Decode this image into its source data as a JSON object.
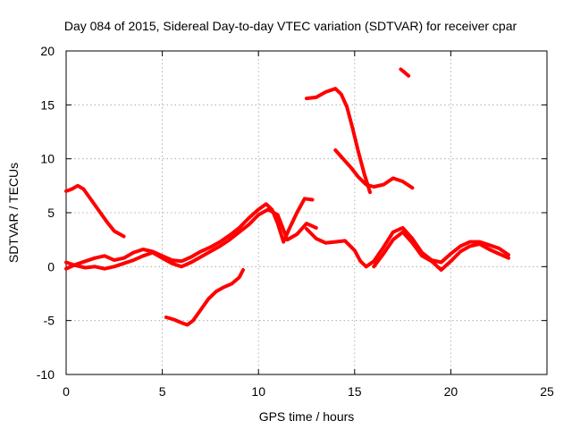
{
  "chart_data": {
    "type": "line",
    "title": "Day 084 of 2015, Sidereal Day-to-day VTEC variation (SDTVAR) for receiver cpar",
    "xlabel": "GPS time / hours",
    "ylabel": "SDTVAR / TECUs",
    "xlim": [
      0,
      25
    ],
    "ylim": [
      -10,
      20
    ],
    "x_ticks": [
      0,
      5,
      10,
      15,
      20,
      25
    ],
    "x_tick_labels": [
      "0",
      "5",
      "10",
      "15",
      "20",
      "25"
    ],
    "y_ticks": [
      -10,
      -5,
      0,
      5,
      10,
      15,
      20
    ],
    "y_tick_labels": [
      "-10",
      "-5",
      "0",
      "5",
      "10",
      "15",
      "20"
    ],
    "grid": true,
    "color": "#ff0000",
    "series": [
      {
        "name": "trace-1",
        "x": [
          0.0,
          0.3,
          0.6,
          0.9,
          1.3,
          1.7,
          2.1,
          2.5,
          3.0
        ],
        "y": [
          7.0,
          7.2,
          7.5,
          7.2,
          6.2,
          5.2,
          4.2,
          3.3,
          2.8
        ]
      },
      {
        "name": "trace-2",
        "x": [
          0.0,
          0.5,
          1.0,
          1.5,
          2.0,
          2.5,
          3.0,
          3.5,
          4.0,
          4.5,
          5.0,
          5.5,
          6.0,
          6.5,
          7.0,
          7.5,
          8.0,
          8.5,
          9.0,
          9.5,
          10.0,
          10.4,
          10.7,
          11.0,
          11.3,
          11.6,
          12.0,
          12.4,
          12.8
        ],
        "y": [
          -0.2,
          0.2,
          0.5,
          0.8,
          1.0,
          0.6,
          0.8,
          1.3,
          1.6,
          1.4,
          1.0,
          0.6,
          0.5,
          0.9,
          1.4,
          1.8,
          2.3,
          2.9,
          3.6,
          4.5,
          5.3,
          5.8,
          5.3,
          4.0,
          2.3,
          3.5,
          5.0,
          6.3,
          6.2
        ]
      },
      {
        "name": "trace-3",
        "x": [
          0.0,
          0.5,
          1.0,
          1.5,
          2.0,
          2.5,
          3.0,
          3.5,
          4.0,
          4.5,
          5.0,
          5.5,
          6.0,
          6.5,
          7.0,
          7.5,
          8.0,
          8.5,
          9.0,
          9.5,
          10.0,
          10.5,
          11.0,
          11.5,
          12.0,
          12.5,
          13.0
        ],
        "y": [
          0.4,
          0.1,
          -0.1,
          0.0,
          -0.2,
          0.0,
          0.3,
          0.6,
          1.0,
          1.3,
          0.8,
          0.3,
          0.0,
          0.4,
          0.9,
          1.4,
          1.9,
          2.5,
          3.2,
          3.9,
          4.8,
          5.3,
          4.8,
          2.5,
          3.0,
          4.0,
          3.6
        ]
      },
      {
        "name": "trace-4",
        "x": [
          12.5,
          13.0,
          13.5,
          14.0,
          14.5,
          15.0,
          15.3,
          15.6,
          16.0,
          16.5,
          17.0,
          17.5,
          18.0,
          18.5,
          19.0,
          19.5,
          20.0,
          20.5,
          21.0,
          21.5,
          22.0,
          22.5,
          23.0
        ],
        "y": [
          3.5,
          2.6,
          2.2,
          2.3,
          2.4,
          1.5,
          0.5,
          0.0,
          0.5,
          1.8,
          3.2,
          3.6,
          2.6,
          1.3,
          0.6,
          0.4,
          1.2,
          1.9,
          2.3,
          2.3,
          2.0,
          1.7,
          1.1
        ]
      },
      {
        "name": "trace-5",
        "x": [
          16.0,
          16.5,
          17.0,
          17.5,
          18.0,
          18.5,
          19.0,
          19.5,
          20.0,
          20.5,
          21.0,
          21.5,
          22.0,
          22.5,
          23.0
        ],
        "y": [
          0.0,
          1.2,
          2.5,
          3.2,
          2.2,
          1.0,
          0.5,
          -0.3,
          0.5,
          1.4,
          1.9,
          2.1,
          1.6,
          1.2,
          0.8
        ]
      },
      {
        "name": "trace-6",
        "x": [
          5.2,
          5.6,
          6.0,
          6.3,
          6.6,
          7.0,
          7.4,
          7.8,
          8.2,
          8.6,
          9.0,
          9.2
        ],
        "y": [
          -4.7,
          -4.9,
          -5.2,
          -5.4,
          -5.0,
          -4.0,
          -3.0,
          -2.3,
          -1.9,
          -1.6,
          -1.0,
          -0.3
        ]
      },
      {
        "name": "trace-7",
        "x": [
          12.5,
          13.0,
          13.5,
          14.0,
          14.3,
          14.6,
          14.9,
          15.2,
          15.5,
          15.8
        ],
        "y": [
          15.6,
          15.7,
          16.2,
          16.5,
          16.0,
          14.8,
          12.8,
          10.6,
          8.6,
          6.9
        ]
      },
      {
        "name": "trace-8",
        "x": [
          14.0,
          14.4,
          14.8,
          15.2,
          15.6,
          16.0,
          16.5,
          17.0,
          17.5,
          18.0
        ],
        "y": [
          10.8,
          10.0,
          9.2,
          8.3,
          7.6,
          7.4,
          7.6,
          8.2,
          7.9,
          7.3
        ]
      },
      {
        "name": "trace-9",
        "x": [
          17.4,
          17.6,
          17.8
        ],
        "y": [
          18.3,
          18.0,
          17.7
        ]
      }
    ]
  }
}
